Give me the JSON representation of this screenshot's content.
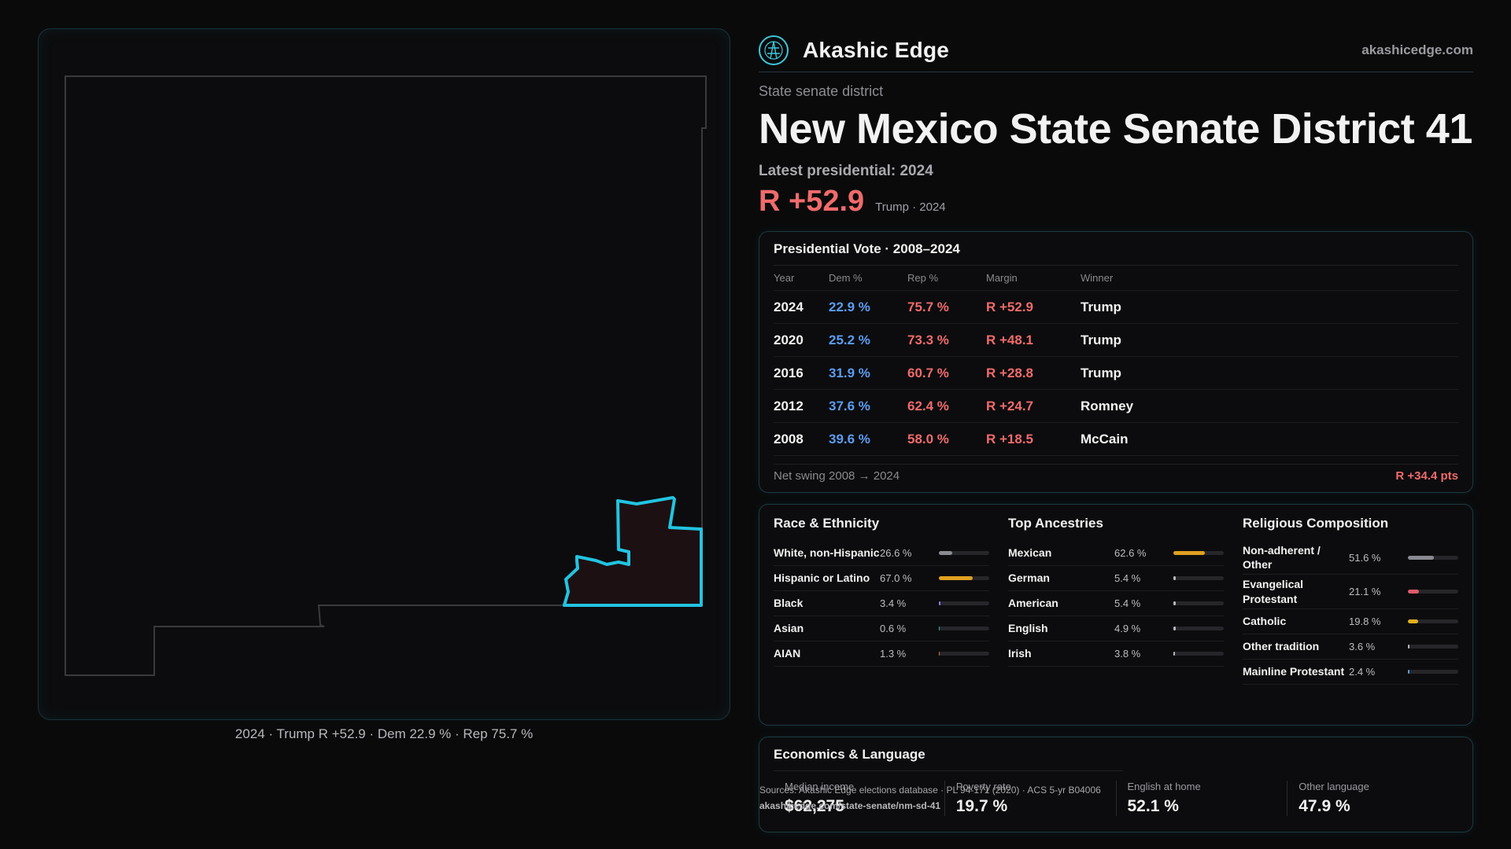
{
  "brand": {
    "name": "Akashic Edge",
    "url": "akashicedge.com",
    "logo_icon": "compass-logo-icon"
  },
  "header": {
    "kicker": "State senate district",
    "title": "New Mexico State Senate District 41",
    "latest_label": "Latest presidential: 2024",
    "big_margin": "R +52.9",
    "margin_sub": "Trump · 2024"
  },
  "map": {
    "caption": "2024 · Trump R +52.9 · Dem 22.9 % · Rep 75.7 %",
    "highlight_color": "#22c4e0"
  },
  "vote_table": {
    "title": "Presidential Vote · 2008–2024",
    "columns": [
      "Year",
      "Dem %",
      "Rep %",
      "Margin",
      "Winner"
    ],
    "rows": [
      {
        "year": "2024",
        "dem": "22.9 %",
        "rep": "75.7 %",
        "margin": "R +52.9",
        "winner": "Trump"
      },
      {
        "year": "2020",
        "dem": "25.2 %",
        "rep": "73.3 %",
        "margin": "R +48.1",
        "winner": "Trump"
      },
      {
        "year": "2016",
        "dem": "31.9 %",
        "rep": "60.7 %",
        "margin": "R +28.8",
        "winner": "Trump"
      },
      {
        "year": "2012",
        "dem": "37.6 %",
        "rep": "62.4 %",
        "margin": "R +24.7",
        "winner": "Romney"
      },
      {
        "year": "2008",
        "dem": "39.6 %",
        "rep": "58.0 %",
        "margin": "R +18.5",
        "winner": "McCain"
      }
    ],
    "swing_label": "Net swing 2008 → 2024",
    "swing_value": "R +34.4 pts"
  },
  "race": {
    "title": "Race & Ethnicity",
    "items": [
      {
        "label": "White, non-Hispanic",
        "value": "26.6 %",
        "fraction": 0.266,
        "color": "#8a8a92"
      },
      {
        "label": "Hispanic or Latino",
        "value": "67.0 %",
        "fraction": 0.67,
        "color": "#e0a020"
      },
      {
        "label": "Black",
        "value": "3.4 %",
        "fraction": 0.034,
        "color": "#8a7cf0"
      },
      {
        "label": "Asian",
        "value": "0.6 %",
        "fraction": 0.006,
        "color": "#2ab5a0"
      },
      {
        "label": "AIAN",
        "value": "1.3 %",
        "fraction": 0.013,
        "color": "#d0703a"
      }
    ]
  },
  "ancestry": {
    "title": "Top Ancestries",
    "items": [
      {
        "label": "Mexican",
        "value": "62.6 %",
        "fraction": 0.626,
        "color": "#e0a020"
      },
      {
        "label": "German",
        "value": "5.4 %",
        "fraction": 0.054,
        "color": "#b8b8bc"
      },
      {
        "label": "American",
        "value": "5.4 %",
        "fraction": 0.054,
        "color": "#b8b8bc"
      },
      {
        "label": "English",
        "value": "4.9 %",
        "fraction": 0.049,
        "color": "#b8b8bc"
      },
      {
        "label": "Irish",
        "value": "3.8 %",
        "fraction": 0.038,
        "color": "#b8b8bc"
      }
    ]
  },
  "religion": {
    "title": "Religious Composition",
    "items": [
      {
        "label": "Non-adherent / Other",
        "value": "51.6 %",
        "fraction": 0.516,
        "color": "#8a8a92"
      },
      {
        "label": "Evangelical Protestant",
        "value": "21.1 %",
        "fraction": 0.211,
        "color": "#e05a6a"
      },
      {
        "label": "Catholic",
        "value": "19.8 %",
        "fraction": 0.198,
        "color": "#e0b020"
      },
      {
        "label": "Other tradition",
        "value": "3.6 %",
        "fraction": 0.036,
        "color": "#b8b8bc"
      },
      {
        "label": "Mainline Protestant",
        "value": "2.4 %",
        "fraction": 0.024,
        "color": "#5b9df2"
      }
    ]
  },
  "econ": {
    "title": "Economics & Language",
    "items": [
      {
        "label": "Median income",
        "value": "$62,275"
      },
      {
        "label": "Poverty rate",
        "value": "19.7 %"
      },
      {
        "label": "English at home",
        "value": "52.1 %"
      },
      {
        "label": "Other language",
        "value": "47.9 %"
      }
    ],
    "sources": "Sources: Akashic Edge elections database · PL 94-171 (2020) · ACS 5-yr B04006",
    "source_url": "akashicedge.com/state-senate/nm-sd-41"
  }
}
